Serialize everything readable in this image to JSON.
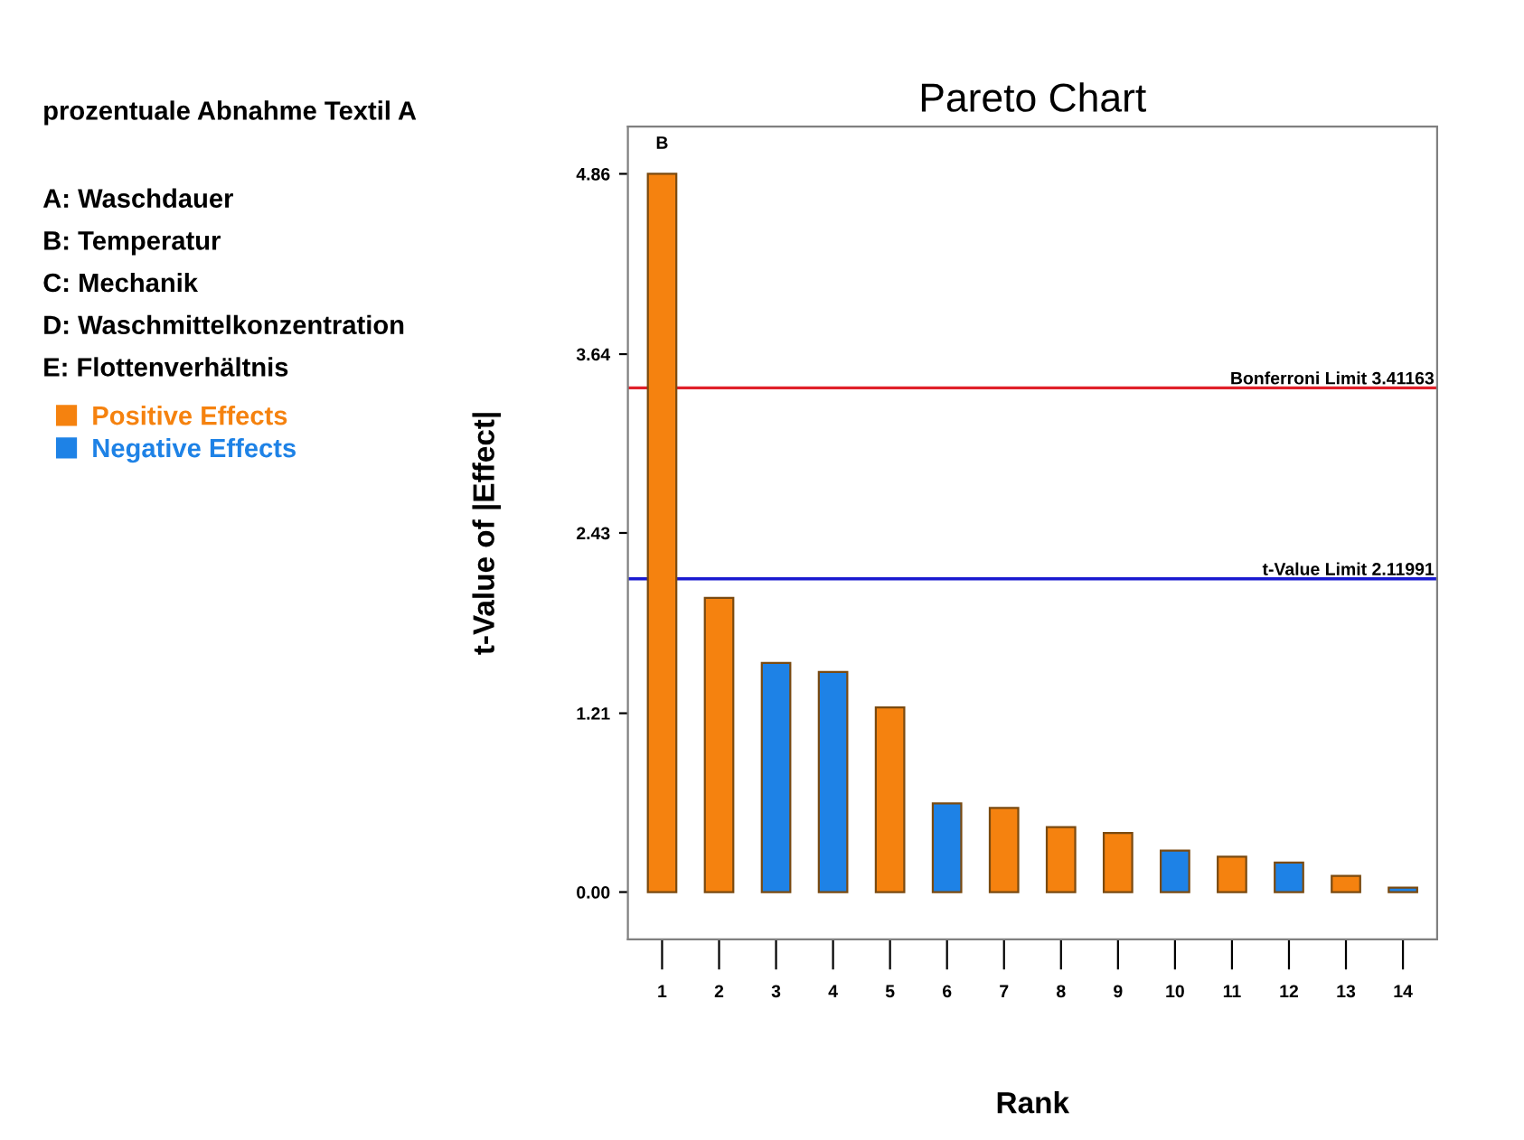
{
  "chart_data": {
    "type": "bar",
    "title": "Pareto Chart",
    "subtitle": "prozentuale Abnahme Textil A",
    "xlabel": "Rank",
    "ylabel": "t-Value of |Effect|",
    "categories": [
      "1",
      "2",
      "3",
      "4",
      "5",
      "6",
      "7",
      "8",
      "9",
      "10",
      "11",
      "12",
      "13",
      "14"
    ],
    "series": [
      {
        "name": "Positive Effects",
        "color": "#f5820f",
        "values": [
          4.86,
          1.99,
          null,
          null,
          1.25,
          null,
          0.57,
          0.44,
          0.4,
          null,
          0.24,
          null,
          0.11,
          null
        ]
      },
      {
        "name": "Negative Effects",
        "color": "#1e82e6",
        "values": [
          null,
          null,
          1.55,
          1.49,
          null,
          0.6,
          null,
          null,
          null,
          0.28,
          null,
          0.2,
          null,
          0.03
        ]
      }
    ],
    "ylim": [
      -0.32,
      5.18
    ],
    "yticks": [
      {
        "value": 0,
        "label": "0.00"
      },
      1.21,
      2.43,
      3.64,
      4.86
    ],
    "ref_lines": [
      {
        "axis": "y",
        "value": 3.41163,
        "label": "Bonferroni Limit 3.41163",
        "color": "#e0202a"
      },
      {
        "axis": "y",
        "value": 2.11991,
        "label": "t-Value Limit 2.11991",
        "color": "#1a1ad0"
      }
    ],
    "annotations": [
      {
        "text": "B",
        "x": "1",
        "y": 4.86
      },
      "A: Waschdauer",
      "B: Temperatur",
      "C: Mechanik",
      "D: Waschmittelkonzentration",
      "E: Flottenverhältnis"
    ],
    "legend": "left",
    "grid": false
  }
}
